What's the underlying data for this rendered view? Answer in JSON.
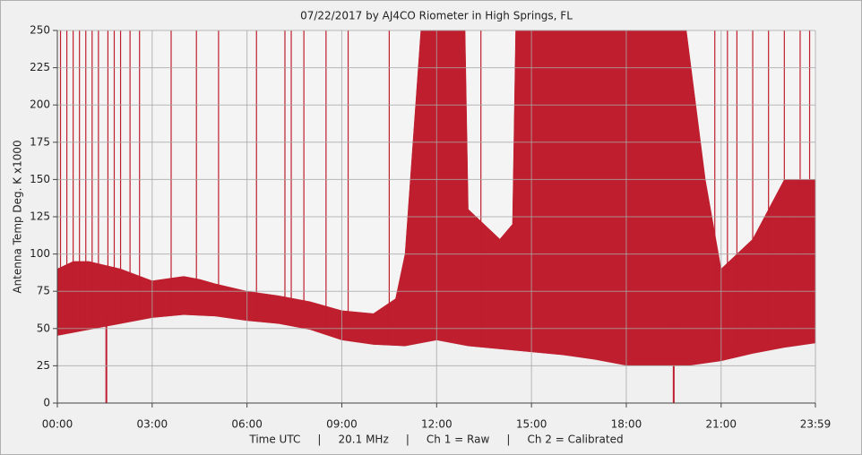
{
  "chart_data": {
    "type": "area",
    "title": "07/22/2017  by  AJ4CO Riometer  in  High Springs, FL",
    "y_label": "Antenna Temp Deg. K x1000",
    "x_label": "Time UTC     |     20.1 MHz     |     Ch 1 = Raw     |     Ch 2 = Calibrated",
    "xlim": [
      0,
      23.983
    ],
    "xticks": [
      {
        "value": 0,
        "label": "00:00"
      },
      {
        "value": 3,
        "label": "03:00"
      },
      {
        "value": 6,
        "label": "06:00"
      },
      {
        "value": 9,
        "label": "09:00"
      },
      {
        "value": 12,
        "label": "12:00"
      },
      {
        "value": 15,
        "label": "15:00"
      },
      {
        "value": 18,
        "label": "18:00"
      },
      {
        "value": 21,
        "label": "21:00"
      },
      {
        "value": 23.983,
        "label": "23:59"
      }
    ],
    "ylim": [
      0,
      250
    ],
    "yticks": [
      0,
      25,
      50,
      75,
      100,
      125,
      150,
      175,
      200,
      225,
      250
    ],
    "grid": true,
    "series": [
      {
        "color": "#be1e2d",
        "x": [
          0,
          0.5,
          1,
          2,
          3,
          4,
          4.5,
          5,
          6,
          7,
          8,
          9,
          10,
          10.7,
          11,
          11.5,
          12,
          12.9,
          13,
          14,
          14.4,
          14.5,
          15,
          18,
          19.9,
          20.5,
          21,
          22,
          23,
          23.983
        ],
        "values": [
          90,
          95,
          95,
          90,
          82,
          85,
          83,
          80,
          75,
          72,
          68,
          62,
          60,
          70,
          100,
          250,
          250,
          250,
          130,
          110,
          120,
          250,
          250,
          250,
          250,
          150,
          90,
          110,
          150,
          150
        ]
      },
      {
        "color": "#f0f0f0",
        "x": [
          0,
          1,
          2,
          3,
          4,
          5,
          6,
          7,
          8,
          9,
          10,
          11,
          12,
          13,
          14,
          15,
          16,
          17,
          18,
          19,
          20,
          21,
          22,
          23,
          23.983
        ],
        "values": [
          45,
          49,
          53,
          57,
          59,
          58,
          55,
          53,
          49,
          42,
          39,
          38,
          42,
          38,
          36,
          34,
          32,
          29,
          25,
          25,
          25,
          28,
          33,
          37,
          40
        ]
      }
    ],
    "spikes": {
      "color": "#be1e2d",
      "x": [
        0.1,
        0.3,
        0.5,
        0.7,
        0.9,
        1.1,
        1.3,
        1.6,
        1.8,
        2.0,
        2.3,
        2.6,
        3.6,
        4.4,
        5.1,
        6.3,
        7.2,
        7.4,
        7.8,
        8.5,
        9.2,
        10.5,
        13.4,
        20.8,
        21.2,
        21.5,
        22.0,
        22.5,
        23.0,
        23.5,
        23.8
      ],
      "values": [
        250,
        250,
        250,
        250,
        250,
        250,
        250,
        250,
        250,
        250,
        250,
        250,
        250,
        250,
        250,
        250,
        250,
        250,
        250,
        250,
        250,
        250,
        250,
        250,
        250,
        250,
        250,
        250,
        250,
        250,
        250
      ]
    },
    "dips": {
      "color": "#be1e2d",
      "x": [
        1.55,
        19.5
      ],
      "values": [
        0,
        0
      ]
    }
  }
}
